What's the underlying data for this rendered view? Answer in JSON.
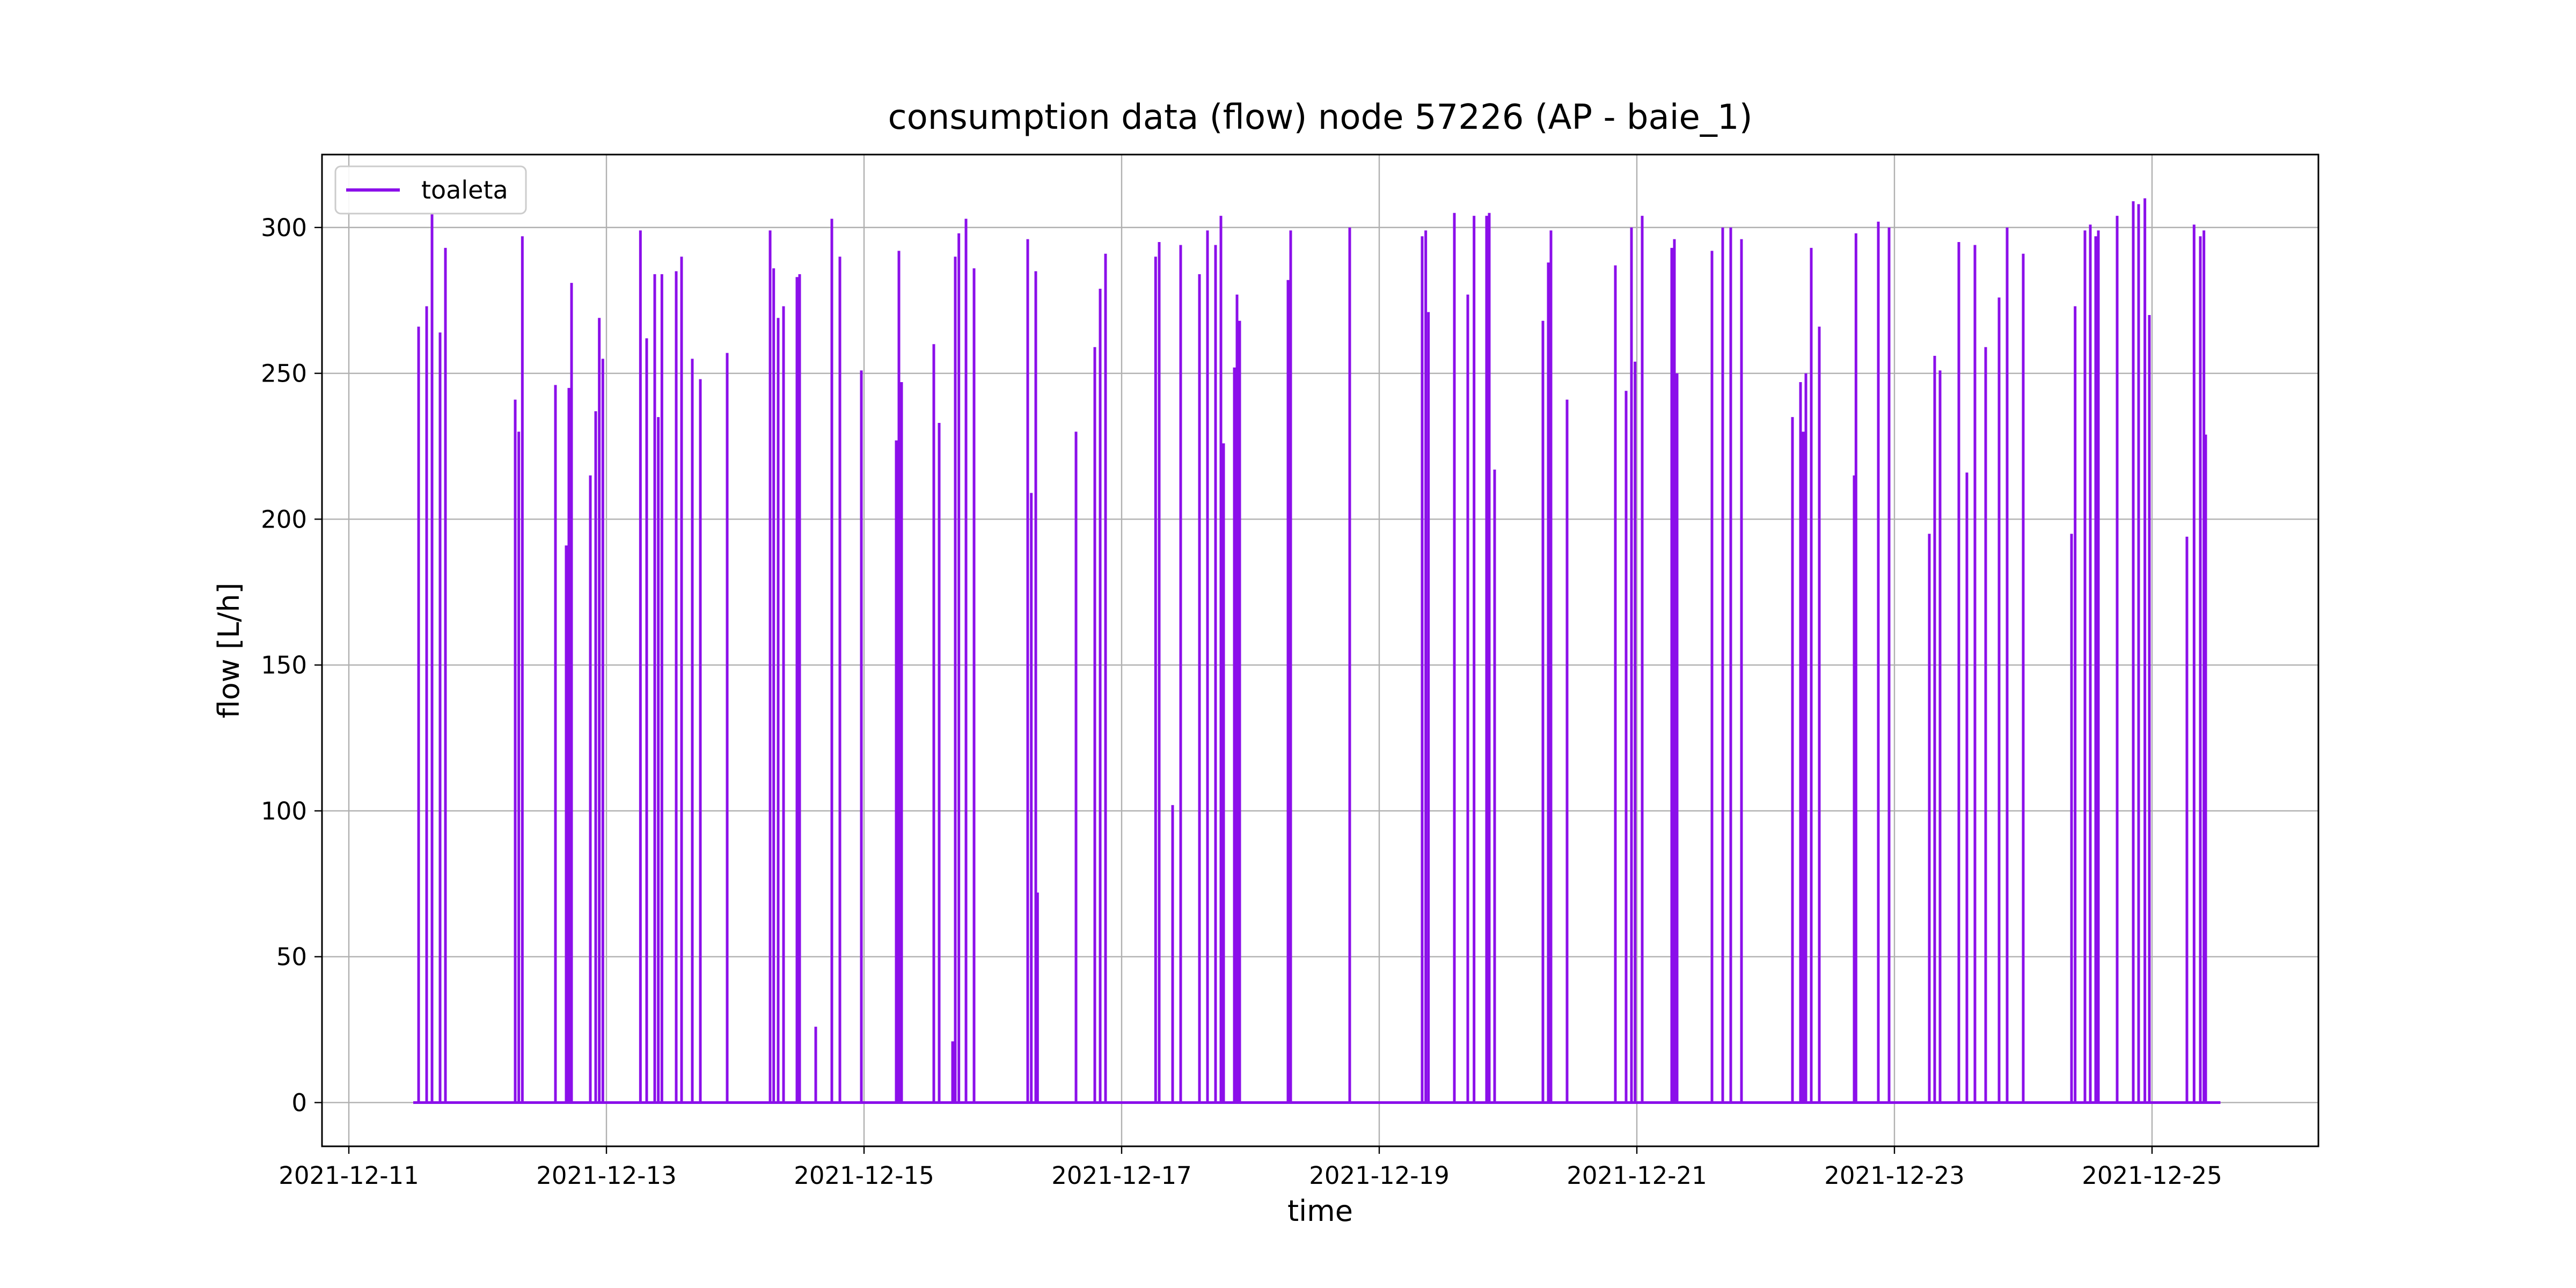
{
  "chart_data": {
    "type": "line",
    "title": "consumption data (flow) node 57226 (AP - baie_1)",
    "xlabel": "time",
    "ylabel": "flow [L/h]",
    "xlim": [
      "2021-12-10T19:00",
      "2021-12-26T07:00"
    ],
    "ylim": [
      -15,
      325
    ],
    "grid": true,
    "legend_position": "top-left",
    "x_ticks": [
      "2021-12-11",
      "2021-12-13",
      "2021-12-15",
      "2021-12-17",
      "2021-12-19",
      "2021-12-21",
      "2021-12-23",
      "2021-12-25"
    ],
    "y_ticks": [
      0,
      50,
      100,
      150,
      200,
      250,
      300
    ],
    "series": [
      {
        "name": "toaleta",
        "color": "#8b0fea",
        "x_range": [
          "2021-12-11T12:00",
          "2021-12-25T12:45"
        ],
        "baseline": 0,
        "spikes": [
          [
            "2021-12-11T13:00",
            266
          ],
          [
            "2021-12-11T14:30",
            273
          ],
          [
            "2021-12-11T15:30",
            305
          ],
          [
            "2021-12-11T17:00",
            264
          ],
          [
            "2021-12-11T18:00",
            293
          ],
          [
            "2021-12-12T07:00",
            241
          ],
          [
            "2021-12-12T07:40",
            230
          ],
          [
            "2021-12-12T08:20",
            297
          ],
          [
            "2021-12-12T14:30",
            246
          ],
          [
            "2021-12-12T16:30",
            191
          ],
          [
            "2021-12-12T17:00",
            245
          ],
          [
            "2021-12-12T17:30",
            281
          ],
          [
            "2021-12-12T21:00",
            215
          ],
          [
            "2021-12-12T22:00",
            237
          ],
          [
            "2021-12-12T22:40",
            269
          ],
          [
            "2021-12-12T23:20",
            255
          ],
          [
            "2021-12-13T06:20",
            299
          ],
          [
            "2021-12-13T07:30",
            262
          ],
          [
            "2021-12-13T09:00",
            284
          ],
          [
            "2021-12-13T09:40",
            235
          ],
          [
            "2021-12-13T10:20",
            284
          ],
          [
            "2021-12-13T13:00",
            285
          ],
          [
            "2021-12-13T14:00",
            290
          ],
          [
            "2021-12-13T16:00",
            255
          ],
          [
            "2021-12-13T17:30",
            248
          ],
          [
            "2021-12-13T22:30",
            257
          ],
          [
            "2021-12-14T06:30",
            299
          ],
          [
            "2021-12-14T07:10",
            286
          ],
          [
            "2021-12-14T08:00",
            269
          ],
          [
            "2021-12-14T09:00",
            273
          ],
          [
            "2021-12-14T11:30",
            283
          ],
          [
            "2021-12-14T12:00",
            284
          ],
          [
            "2021-12-14T15:00",
            26
          ],
          [
            "2021-12-14T18:00",
            303
          ],
          [
            "2021-12-14T19:30",
            290
          ],
          [
            "2021-12-14T23:30",
            251
          ],
          [
            "2021-12-15T06:00",
            227
          ],
          [
            "2021-12-15T06:30",
            292
          ],
          [
            "2021-12-15T07:00",
            247
          ],
          [
            "2021-12-15T13:00",
            260
          ],
          [
            "2021-12-15T14:00",
            233
          ],
          [
            "2021-12-15T16:30",
            21
          ],
          [
            "2021-12-15T17:00",
            290
          ],
          [
            "2021-12-15T17:40",
            298
          ],
          [
            "2021-12-15T19:00",
            303
          ],
          [
            "2021-12-15T20:30",
            286
          ],
          [
            "2021-12-16T06:30",
            296
          ],
          [
            "2021-12-16T07:10",
            209
          ],
          [
            "2021-12-16T08:00",
            285
          ],
          [
            "2021-12-16T08:20",
            72
          ],
          [
            "2021-12-16T15:30",
            230
          ],
          [
            "2021-12-16T19:00",
            259
          ],
          [
            "2021-12-16T20:00",
            279
          ],
          [
            "2021-12-16T21:00",
            291
          ],
          [
            "2021-12-17T06:20",
            290
          ],
          [
            "2021-12-17T07:00",
            295
          ],
          [
            "2021-12-17T09:30",
            102
          ],
          [
            "2021-12-17T11:00",
            294
          ],
          [
            "2021-12-17T14:30",
            284
          ],
          [
            "2021-12-17T16:00",
            299
          ],
          [
            "2021-12-17T17:30",
            294
          ],
          [
            "2021-12-17T18:30",
            304
          ],
          [
            "2021-12-17T19:00",
            226
          ],
          [
            "2021-12-17T21:00",
            252
          ],
          [
            "2021-12-17T21:30",
            277
          ],
          [
            "2021-12-17T22:00",
            268
          ],
          [
            "2021-12-18T07:00",
            282
          ],
          [
            "2021-12-18T07:30",
            299
          ],
          [
            "2021-12-18T18:30",
            300
          ],
          [
            "2021-12-19T08:00",
            297
          ],
          [
            "2021-12-19T08:40",
            299
          ],
          [
            "2021-12-19T09:10",
            271
          ],
          [
            "2021-12-19T14:00",
            305
          ],
          [
            "2021-12-19T16:30",
            277
          ],
          [
            "2021-12-19T17:40",
            304
          ],
          [
            "2021-12-19T20:00",
            304
          ],
          [
            "2021-12-19T20:30",
            305
          ],
          [
            "2021-12-19T21:30",
            217
          ],
          [
            "2021-12-20T06:30",
            268
          ],
          [
            "2021-12-20T07:30",
            288
          ],
          [
            "2021-12-20T08:00",
            299
          ],
          [
            "2021-12-20T11:00",
            241
          ],
          [
            "2021-12-20T20:00",
            287
          ],
          [
            "2021-12-20T22:00",
            244
          ],
          [
            "2021-12-20T23:00",
            300
          ],
          [
            "2021-12-20T23:40",
            254
          ],
          [
            "2021-12-21T01:00",
            304
          ],
          [
            "2021-12-21T06:30",
            293
          ],
          [
            "2021-12-21T07:00",
            296
          ],
          [
            "2021-12-21T07:30",
            250
          ],
          [
            "2021-12-21T14:00",
            292
          ],
          [
            "2021-12-21T16:00",
            300
          ],
          [
            "2021-12-21T17:30",
            300
          ],
          [
            "2021-12-21T19:30",
            296
          ],
          [
            "2021-12-22T05:00",
            235
          ],
          [
            "2021-12-22T06:30",
            247
          ],
          [
            "2021-12-22T07:00",
            230
          ],
          [
            "2021-12-22T07:30",
            250
          ],
          [
            "2021-12-22T08:30",
            293
          ],
          [
            "2021-12-22T10:00",
            266
          ],
          [
            "2021-12-22T16:30",
            215
          ],
          [
            "2021-12-22T16:50",
            298
          ],
          [
            "2021-12-22T21:00",
            302
          ],
          [
            "2021-12-22T23:00",
            300
          ],
          [
            "2021-12-23T06:30",
            195
          ],
          [
            "2021-12-23T07:30",
            256
          ],
          [
            "2021-12-23T08:30",
            251
          ],
          [
            "2021-12-23T12:00",
            295
          ],
          [
            "2021-12-23T13:30",
            216
          ],
          [
            "2021-12-23T15:00",
            294
          ],
          [
            "2021-12-23T17:00",
            259
          ],
          [
            "2021-12-23T19:30",
            276
          ],
          [
            "2021-12-23T21:00",
            300
          ],
          [
            "2021-12-24T00:00",
            291
          ],
          [
            "2021-12-24T09:00",
            195
          ],
          [
            "2021-12-24T09:40",
            273
          ],
          [
            "2021-12-24T11:30",
            299
          ],
          [
            "2021-12-24T12:30",
            301
          ],
          [
            "2021-12-24T13:30",
            297
          ],
          [
            "2021-12-24T14:00",
            299
          ],
          [
            "2021-12-24T17:30",
            304
          ],
          [
            "2021-12-24T20:30",
            309
          ],
          [
            "2021-12-24T21:30",
            308
          ],
          [
            "2021-12-24T22:40",
            310
          ],
          [
            "2021-12-24T23:30",
            270
          ],
          [
            "2021-12-25T06:30",
            194
          ],
          [
            "2021-12-25T07:50",
            301
          ],
          [
            "2021-12-25T09:00",
            297
          ],
          [
            "2021-12-25T09:40",
            299
          ],
          [
            "2021-12-25T10:00",
            229
          ]
        ]
      }
    ]
  }
}
